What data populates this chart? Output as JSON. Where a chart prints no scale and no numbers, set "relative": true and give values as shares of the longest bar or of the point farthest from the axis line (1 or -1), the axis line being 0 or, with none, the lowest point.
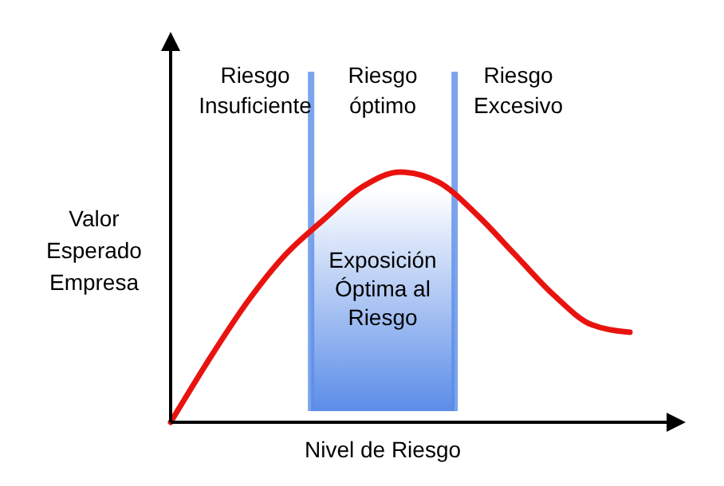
{
  "chart_data": {
    "type": "line",
    "relative": true,
    "xlabel": "Nivel de Riesgo",
    "ylabel": "Valor\nEsperado\nEmpresa",
    "categories": [
      null,
      null,
      null,
      null,
      null,
      null,
      null,
      null,
      null,
      null,
      null,
      null,
      null
    ],
    "series": [
      {
        "color": "#e8130f",
        "values": [
          0,
          0.25,
          0.48,
          0.67,
          0.81,
          0.94,
          1,
          0.96,
          0.83,
          0.67,
          0.51,
          0.39,
          0.36
        ]
      }
    ],
    "annotations": [
      "Riesgo\nInsuficiente",
      "Riesgo\nóptimo",
      "Riesgo\nExcesivo",
      "Exposición\nÓptima al\nRiesgo"
    ],
    "line_style": "solid"
  }
}
